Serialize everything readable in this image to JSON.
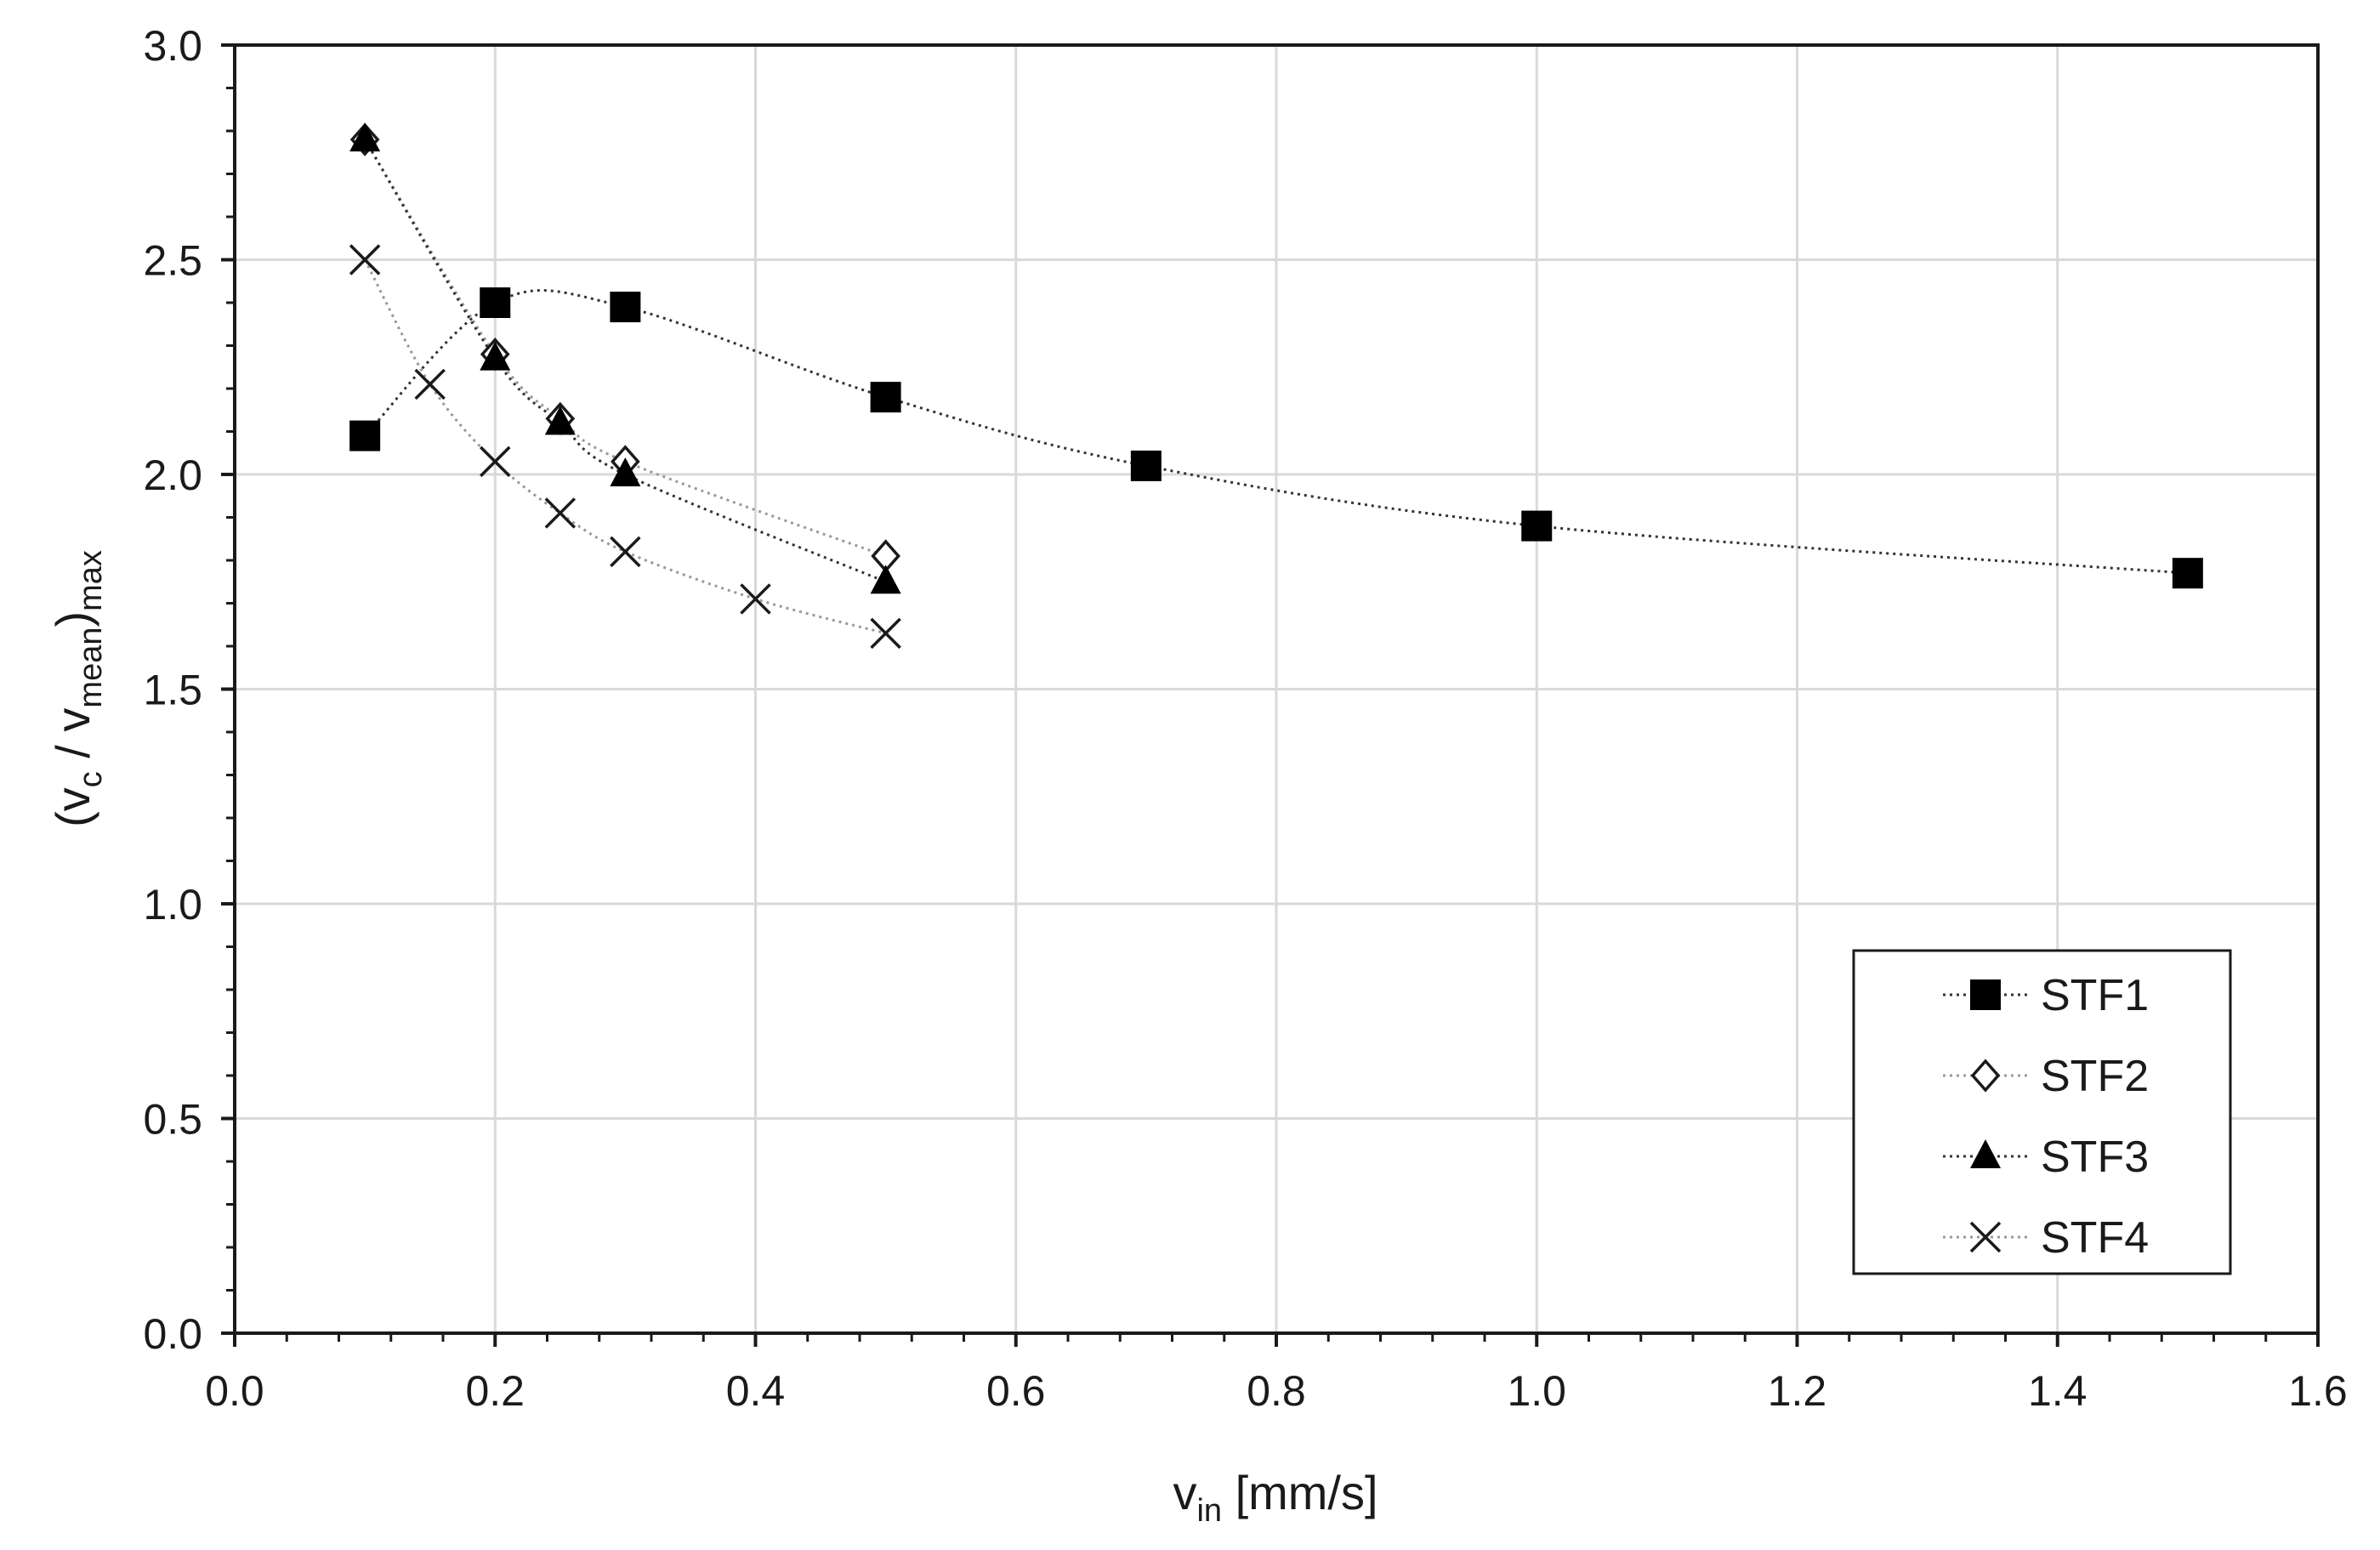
{
  "chart_data": {
    "type": "scatter",
    "title": "",
    "xlabel": {
      "base": "v",
      "sub": "in",
      "suffix": " [mm/s]"
    },
    "ylabel": {
      "open": "(",
      "v1": "v",
      "sub1": "c",
      "mid": " / ",
      "v2": "v",
      "sub2": "mean",
      "close": ")",
      "sub3": "max"
    },
    "xlim": [
      0.0,
      1.6
    ],
    "ylim": [
      0.0,
      3.0
    ],
    "x_major_step": 0.2,
    "x_minor_step": 0.04,
    "y_major_step": 0.5,
    "y_minor_step": 0.1,
    "x_tick_labels": [
      "0.0",
      "0.2",
      "0.4",
      "0.6",
      "0.8",
      "1.0",
      "1.2",
      "1.4",
      "1.6"
    ],
    "y_tick_labels": [
      "0.0",
      "0.5",
      "1.0",
      "1.5",
      "2.0",
      "2.5",
      "3.0"
    ],
    "grid": true,
    "legend_position": "lower-right",
    "series": [
      {
        "name": "STF1",
        "marker": "square-filled",
        "line_color": "#333333",
        "x": [
          0.1,
          0.2,
          0.3,
          0.5,
          0.7,
          1.0,
          1.5
        ],
        "y": [
          2.09,
          2.4,
          2.39,
          2.18,
          2.02,
          1.88,
          1.77
        ]
      },
      {
        "name": "STF2",
        "marker": "diamond-open",
        "line_color": "#999999",
        "x": [
          0.1,
          0.2,
          0.25,
          0.3,
          0.5
        ],
        "y": [
          2.78,
          2.28,
          2.13,
          2.03,
          1.81
        ]
      },
      {
        "name": "STF3",
        "marker": "triangle-filled",
        "line_color": "#333333",
        "x": [
          0.1,
          0.2,
          0.25,
          0.3,
          0.5
        ],
        "y": [
          2.78,
          2.27,
          2.12,
          2.0,
          1.75
        ]
      },
      {
        "name": "STF4",
        "marker": "x",
        "line_color": "#999999",
        "x": [
          0.1,
          0.15,
          0.2,
          0.25,
          0.3,
          0.4,
          0.5
        ],
        "y": [
          2.5,
          2.21,
          2.03,
          1.91,
          1.82,
          1.71,
          1.63
        ]
      }
    ]
  }
}
